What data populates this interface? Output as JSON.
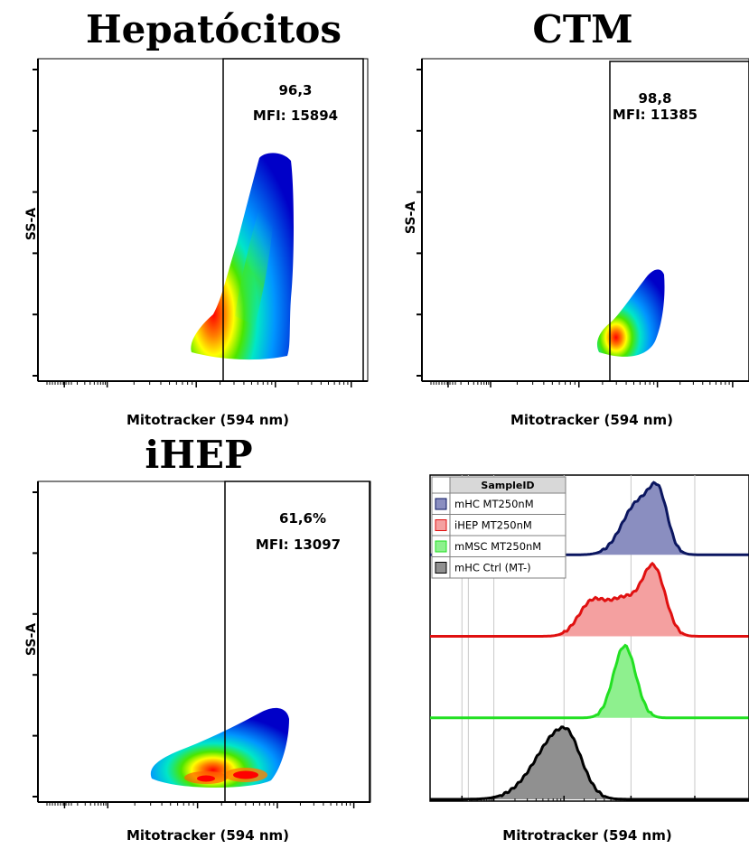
{
  "chart_data": [
    {
      "type": "scatter",
      "title": "Hepatócitos",
      "xlabel": "Mitotracker (594 nm)",
      "ylabel": "SS-A",
      "gate_value": "96,3",
      "mfi": "MFI: 15894",
      "colormap": [
        "#0000c8",
        "#0096ff",
        "#00e6c8",
        "#4be600",
        "#ffff00",
        "#ff8000",
        "#ff0000"
      ]
    },
    {
      "type": "scatter",
      "title": "CTM",
      "xlabel": "Mitotracker (594 nm)",
      "ylabel": "SS-A",
      "gate_value": "98,8",
      "mfi": "MFI: 11385"
    },
    {
      "type": "scatter",
      "title": "iHEP",
      "xlabel": "Mitotracker (594 nm)",
      "ylabel": "SS-A",
      "gate_value": "61,6%",
      "mfi": "MFI: 13097"
    },
    {
      "type": "area",
      "xlabel": "Mitrotracker (594 nm)",
      "legend_header": "SampleID",
      "legend_position": "top-left",
      "grid": true,
      "series": [
        {
          "name": "mHC MT250nM",
          "color": "#8a8ec0",
          "stroke": "#0b1660",
          "peak": 0.67,
          "width": 0.08,
          "shape": "right-shoulder"
        },
        {
          "name": "iHEP MT250nM",
          "color": "#f4a0a0",
          "stroke": "#e01010",
          "peak": 0.6,
          "width": 0.17,
          "shape": "wide-left-shoulder"
        },
        {
          "name": "mMSC MT250nM",
          "color": "#8ef08e",
          "stroke": "#22e022",
          "peak": 0.61,
          "width": 0.045,
          "shape": "narrow"
        },
        {
          "name": "mHC Ctrl (MT-)",
          "color": "#909090",
          "stroke": "#000000",
          "peak": 0.42,
          "width": 0.09,
          "shape": "skewed"
        }
      ]
    }
  ]
}
